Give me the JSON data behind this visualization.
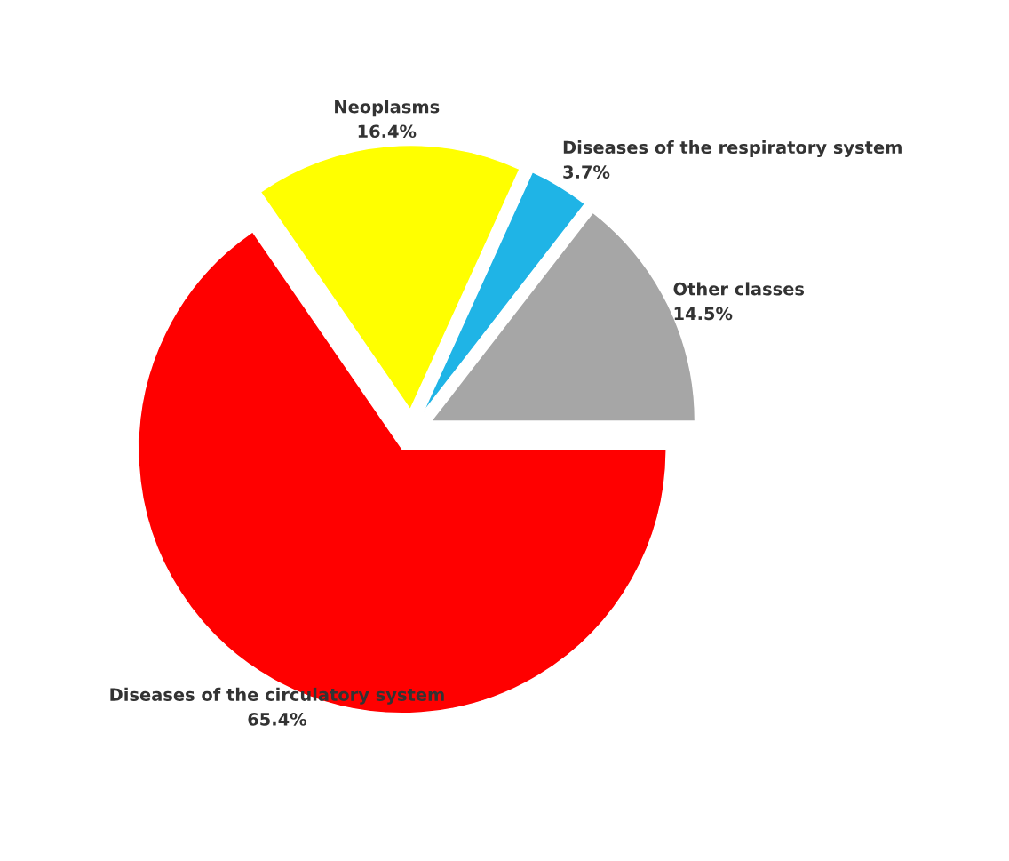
{
  "chart_data": {
    "type": "pie",
    "categories": [
      "Other classes",
      "Diseases of the respiratory system",
      "Neoplasms",
      "Diseases of the circulatory system"
    ],
    "values": [
      14.5,
      3.7,
      16.4,
      65.4
    ],
    "value_labels": [
      "14.5%",
      "3.7%",
      "16.4%",
      "65.4%"
    ],
    "colors": [
      "#a6a6a6",
      "#1fb4e6",
      "#ffff00",
      "#ff0000"
    ]
  }
}
